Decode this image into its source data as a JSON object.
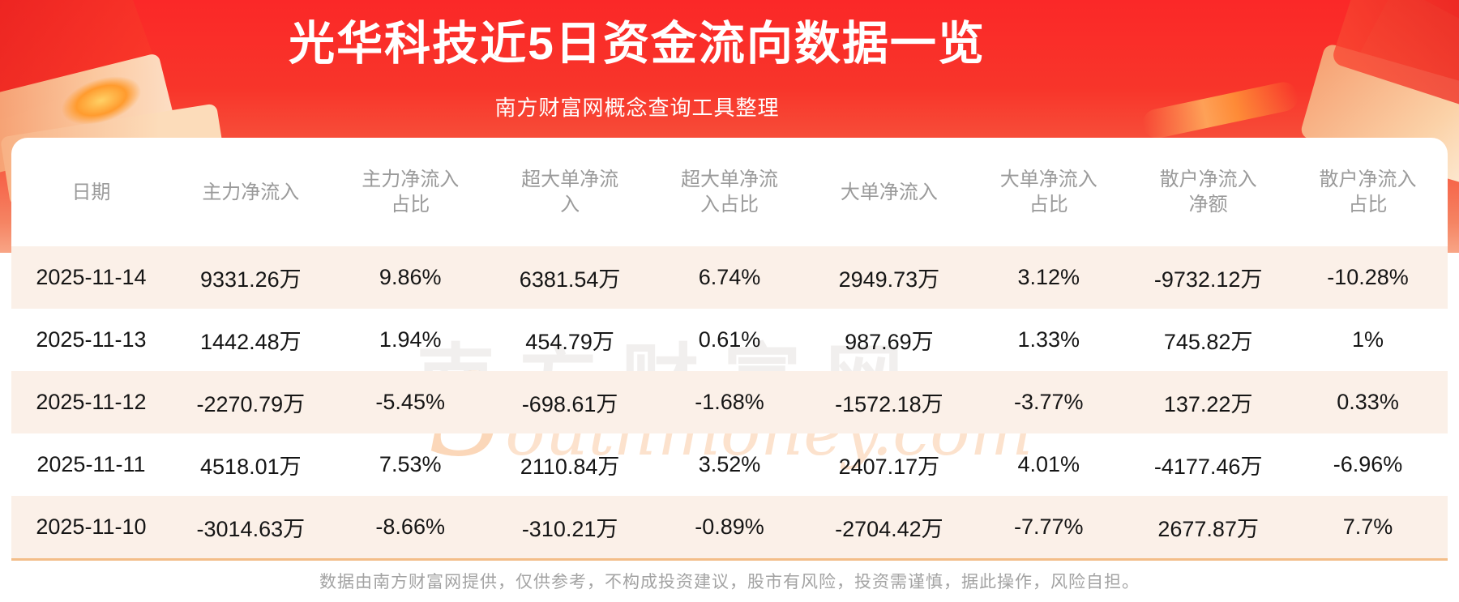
{
  "banner": {
    "title": "光华科技近5日资金流向数据一览",
    "subtitle": "南方财富网概念查询工具整理"
  },
  "table": {
    "columns": [
      {
        "l1": "日期",
        "l2": ""
      },
      {
        "l1": "主力净流入",
        "l2": ""
      },
      {
        "l1": "主力净流入",
        "l2": "占比"
      },
      {
        "l1": "超大单净流",
        "l2": "入"
      },
      {
        "l1": "超大单净流",
        "l2": "入占比"
      },
      {
        "l1": "大单净流入",
        "l2": ""
      },
      {
        "l1": "大单净流入",
        "l2": "占比"
      },
      {
        "l1": "散户净流入",
        "l2": "净额"
      },
      {
        "l1": "散户净流入",
        "l2": "占比"
      }
    ],
    "rows": [
      [
        "2025-11-14",
        "9331.26万",
        "9.86%",
        "6381.54万",
        "6.74%",
        "2949.73万",
        "3.12%",
        "-9732.12万",
        "-10.28%"
      ],
      [
        "2025-11-13",
        "1442.48万",
        "1.94%",
        "454.79万",
        "0.61%",
        "987.69万",
        "1.33%",
        "745.82万",
        "1%"
      ],
      [
        "2025-11-12",
        "-2270.79万",
        "-5.45%",
        "-698.61万",
        "-1.68%",
        "-1572.18万",
        "-3.77%",
        "137.22万",
        "0.33%"
      ],
      [
        "2025-11-11",
        "4518.01万",
        "7.53%",
        "2110.84万",
        "3.52%",
        "2407.17万",
        "4.01%",
        "-4177.46万",
        "-6.96%"
      ],
      [
        "2025-11-10",
        "-3014.63万",
        "-8.66%",
        "-310.21万",
        "-0.89%",
        "-2704.42万",
        "-7.77%",
        "2677.87万",
        "7.7%"
      ]
    ]
  },
  "watermark": {
    "cn": "南方财富网",
    "en": "Southmoney.com"
  },
  "footer": {
    "disclaimer": "数据由南方财富网提供，仅供参考，不构成投资建议，股市有风险，投资需谨慎，据此操作，风险自担。"
  },
  "colors": {
    "banner_red_top": "#fb2828",
    "banner_salmon_bottom": "#f8a586",
    "row_cream": "#fbf0e8",
    "divider_tan": "#f3bd88",
    "header_gray": "#9a9a9a",
    "text_dark": "#151515",
    "footer_gray": "#a3a3a3",
    "title_white": "#ffffff",
    "watermark_orange": "rgba(245,160,90,0.30)"
  }
}
